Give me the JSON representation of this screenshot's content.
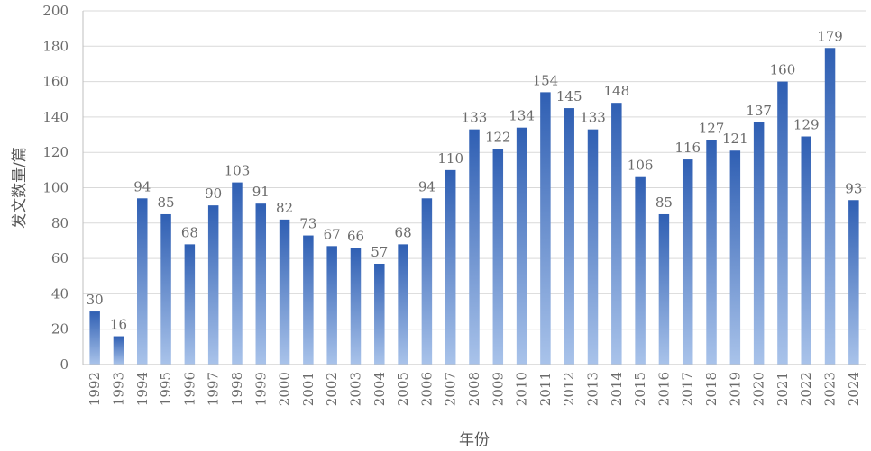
{
  "chart_data": {
    "type": "bar",
    "xlabel": "年份",
    "ylabel": "发文数量/篇",
    "ylim": [
      0,
      200
    ],
    "yticks": [
      0,
      20,
      40,
      60,
      80,
      100,
      120,
      140,
      160,
      180,
      200
    ],
    "grid": true,
    "bar_color_top": "#2f5fb3",
    "bar_color_bottom": "#a9c3ea",
    "categories": [
      "1992",
      "1993",
      "1994",
      "1995",
      "1996",
      "1997",
      "1998",
      "1999",
      "2000",
      "2001",
      "2002",
      "2003",
      "2004",
      "2005",
      "2006",
      "2007",
      "2008",
      "2009",
      "2010",
      "2011",
      "2012",
      "2013",
      "2014",
      "2015",
      "2016",
      "2017",
      "2018",
      "2019",
      "2020",
      "2021",
      "2022",
      "2023",
      "2024"
    ],
    "values": [
      30,
      16,
      94,
      85,
      68,
      90,
      103,
      91,
      82,
      73,
      67,
      66,
      57,
      68,
      94,
      110,
      133,
      122,
      134,
      154,
      145,
      133,
      148,
      106,
      85,
      116,
      127,
      121,
      137,
      160,
      129,
      179,
      93
    ]
  }
}
